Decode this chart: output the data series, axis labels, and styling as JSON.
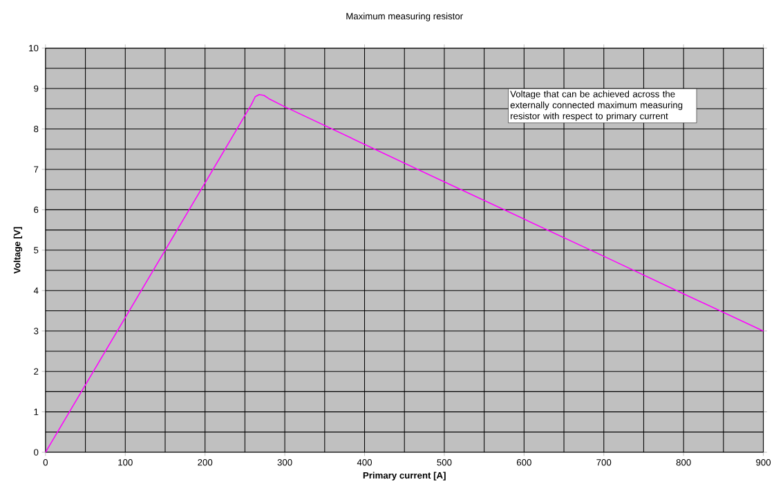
{
  "chart_data": {
    "type": "line",
    "title": "Maximum measuring resistor",
    "xlabel": "Primary current [A]",
    "ylabel": "Voltage [V]",
    "annotations": [
      "Voltage that can be achieved across the externally connected maximum measuring resistor with respect to primary current"
    ],
    "series": [
      {
        "color": "#ff00ff",
        "x": [
          0,
          150,
          250,
          258,
          263,
          268,
          274,
          280,
          300,
          400,
          500,
          600,
          700,
          800,
          900
        ],
        "values": [
          0,
          5.0,
          8.33,
          8.6,
          8.8,
          8.85,
          8.83,
          8.75,
          8.55,
          7.62,
          6.69,
          5.77,
          4.85,
          3.92,
          3.0
        ]
      }
    ],
    "xlim": [
      0,
      900
    ],
    "ylim": [
      0,
      10
    ],
    "xticks": [
      0,
      100,
      200,
      300,
      400,
      500,
      600,
      700,
      800,
      900
    ],
    "yticks": [
      0,
      1,
      2,
      3,
      4,
      5,
      6,
      7,
      8,
      9,
      10
    ],
    "grid": true,
    "marker": "none",
    "line_style": "solid"
  }
}
